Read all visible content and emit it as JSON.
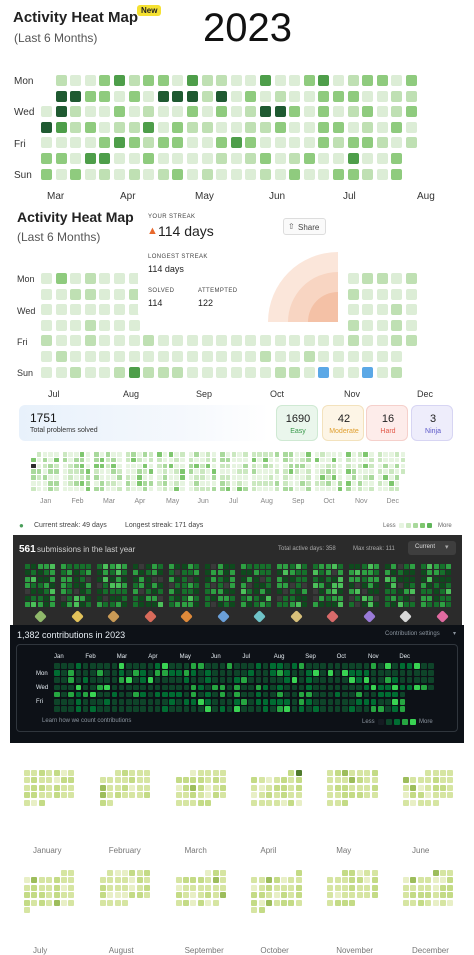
{
  "year_title": "2023",
  "colors": {
    "l0": "#dcedd6",
    "l1": "#bfe0b3",
    "l2": "#8fcb7e",
    "l3": "#4e9e4a",
    "l4": "#1f5a31",
    "p1_bg": "#d4ecca",
    "p3_l0": "#e6f4e0",
    "p3_l1": "#cbe8c0",
    "p3_l2": "#a9d99c",
    "p3_l3": "#7ec66e",
    "p3_today": "#2b2b2b",
    "lc_bg": "#2b2b2b",
    "lc_l0": "#3a3a3a",
    "lc_l1": "#0e4a1d",
    "lc_l2": "#16702b",
    "lc_l3": "#2ea043",
    "lc_l4": "#4cc05a",
    "gh_bg": "#0d1117",
    "gh_l0": "#161b22",
    "gh_l1": "#0e4429",
    "gh_l2": "#006d32",
    "gh_l3": "#26a641",
    "gh_l4": "#39d353",
    "y0": "#e8efc6",
    "y1": "#d6e5a2",
    "y2": "#c4db86",
    "y3": "#9dbd5c",
    "y4": "#4f7a2d"
  },
  "panel1": {
    "title": "Activity Heat Map",
    "badge": "New",
    "subtitle": "(Last 6 Months)",
    "day_labels": [
      "Mon",
      "Wed",
      "Fri",
      "Sun"
    ],
    "month_labels": [
      "Mar",
      "Apr",
      "May",
      "Jun",
      "Jul",
      "Aug"
    ]
  },
  "panel2": {
    "title": "Activity Heat Map",
    "subtitle": "(Last 6 Months)",
    "day_labels": [
      "Mon",
      "Wed",
      "Fri",
      "Sun"
    ],
    "month_labels": [
      "Jul",
      "Aug",
      "Sep",
      "Oct",
      "Nov",
      "Dec"
    ],
    "your_streak_label": "YOUR STREAK",
    "your_streak_value": "114 days",
    "longest_streak_label": "LONGEST STREAK",
    "longest_streak_value": "114 days",
    "solved_label": "SOLVED",
    "solved_value": "114",
    "attempted_label": "ATTEMPTED",
    "attempted_value": "122",
    "share_label": "Share"
  },
  "panel3": {
    "total_value": "1751",
    "total_label": "Total problems solved",
    "stats": [
      {
        "value": "1690",
        "label": "Easy",
        "color": "#3a9a4c",
        "bg": "#eaf6ec",
        "border": "#cfe9d3"
      },
      {
        "value": "42",
        "label": "Moderate",
        "color": "#e0a030",
        "bg": "#fdf5e6",
        "border": "#f3e2bd"
      },
      {
        "value": "16",
        "label": "Hard",
        "color": "#e25a4a",
        "bg": "#fdecea",
        "border": "#f5d0cb"
      },
      {
        "value": "3",
        "label": "Ninja",
        "color": "#5a56c8",
        "bg": "#eeedfb",
        "border": "#d7d5f3"
      }
    ],
    "month_labels": [
      "Jan",
      "Feb",
      "Mar",
      "Apr",
      "May",
      "Jun",
      "Jul",
      "Aug",
      "Sep",
      "Oct",
      "Nov",
      "Dec"
    ],
    "current_streak_text": "Current streak: 49 days",
    "longest_streak_text": "Longest streak: 171 days",
    "less": "Less",
    "more": "More"
  },
  "panel4": {
    "count": "561",
    "text": "submissions in the last year",
    "active_days": "Total active days: 358",
    "max_streak": "Max streak: 111",
    "dropdown": "Current",
    "badge_colors": [
      "#8fb86a",
      "#e2c25a",
      "#c99a56",
      "#d86a5a",
      "#e08a3a",
      "#6a9fd8",
      "#6fc3c8",
      "#d8c07a",
      "#d86a6a",
      "#9a7ad8",
      "#d8d8d8",
      "#e06aa0"
    ]
  },
  "panel5": {
    "title": "1,382 contributions in 2023",
    "settings": "Contribution settings",
    "month_labels": [
      "Jan",
      "Feb",
      "Mar",
      "Apr",
      "May",
      "Jun",
      "Jul",
      "Aug",
      "Sep",
      "Oct",
      "Nov",
      "Dec"
    ],
    "day_labels": [
      "Mon",
      "Wed",
      "Fri"
    ],
    "learn": "Learn how we count contributions",
    "less": "Less",
    "more": "More"
  },
  "panel6": {
    "months": [
      "January",
      "February",
      "March",
      "April",
      "May",
      "June",
      "July",
      "August",
      "September",
      "October",
      "November",
      "December"
    ]
  }
}
